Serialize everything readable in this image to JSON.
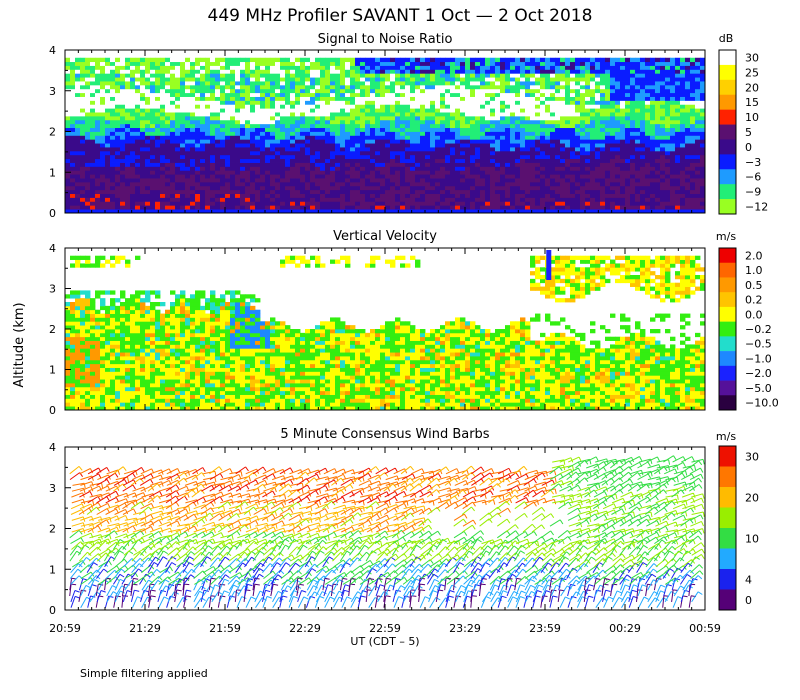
{
  "title": "449 MHz Profiler SAVANT   1 Oct —   2 Oct 2018",
  "ylabel": "Altitude (km)",
  "xlabel": "UT  (CDT – 5)",
  "footnote": "Simple filtering applied",
  "x_ticks": [
    "20:59",
    "21:29",
    "21:59",
    "22:29",
    "22:59",
    "23:29",
    "23:59",
    "00:29",
    "00:59"
  ],
  "y_ticks": [
    "0",
    "1",
    "2",
    "3",
    "4"
  ],
  "chart_data": [
    {
      "type": "heatmap",
      "title": "Signal to Noise Ratio",
      "unit": "dB",
      "xlim": [
        "20:59",
        "00:59"
      ],
      "ylim": [
        0,
        4
      ],
      "colorbar": [
        {
          "label": "30",
          "color": "#ffffff"
        },
        {
          "label": "25",
          "color": "#ffff00"
        },
        {
          "label": "20",
          "color": "#ffd000"
        },
        {
          "label": "15",
          "color": "#ff9900"
        },
        {
          "label": "10",
          "color": "#ff2200"
        },
        {
          "label": "5",
          "color": "#5a1070"
        },
        {
          "label": "0",
          "color": "#3a0a8a"
        },
        {
          "label": "−3",
          "color": "#0a1cff"
        },
        {
          "label": "−6",
          "color": "#1e9bff"
        },
        {
          "label": "−9",
          "color": "#22ee77"
        },
        {
          "label": "−12",
          "color": "#99ff22"
        }
      ]
    },
    {
      "type": "heatmap",
      "title": "Vertical Velocity",
      "unit": "m/s",
      "xlim": [
        "20:59",
        "00:59"
      ],
      "ylim": [
        0,
        4
      ],
      "colorbar": [
        {
          "label": "2.0",
          "color": "#ee0000"
        },
        {
          "label": "1.0",
          "color": "#ff6600"
        },
        {
          "label": "0.5",
          "color": "#ff9900"
        },
        {
          "label": "0.2",
          "color": "#ffc400"
        },
        {
          "label": "0.0",
          "color": "#ffff00"
        },
        {
          "label": "−0.2",
          "color": "#33ee11"
        },
        {
          "label": "−0.5",
          "color": "#22ddcc"
        },
        {
          "label": "−1.0",
          "color": "#1e88ff"
        },
        {
          "label": "−2.0",
          "color": "#1a22ff"
        },
        {
          "label": "−5.0",
          "color": "#55119a"
        },
        {
          "label": "−10.0",
          "color": "#2a0040"
        }
      ]
    },
    {
      "type": "scatter",
      "title": "5 Minute Consensus Wind Barbs",
      "unit": "m/s",
      "xlim": [
        "20:59",
        "00:59"
      ],
      "ylim": [
        0,
        4
      ],
      "colorbar": [
        {
          "label": "30",
          "color": "#ee1100"
        },
        {
          "label": "",
          "color": "#ff7700"
        },
        {
          "label": "20",
          "color": "#ffbb00"
        },
        {
          "label": "",
          "color": "#99ee00"
        },
        {
          "label": "10",
          "color": "#33dd44"
        },
        {
          "label": "",
          "color": "#22aaff"
        },
        {
          "label": "4",
          "color": "#1a22ee"
        },
        {
          "label": "0",
          "color": "#550077"
        }
      ]
    }
  ]
}
